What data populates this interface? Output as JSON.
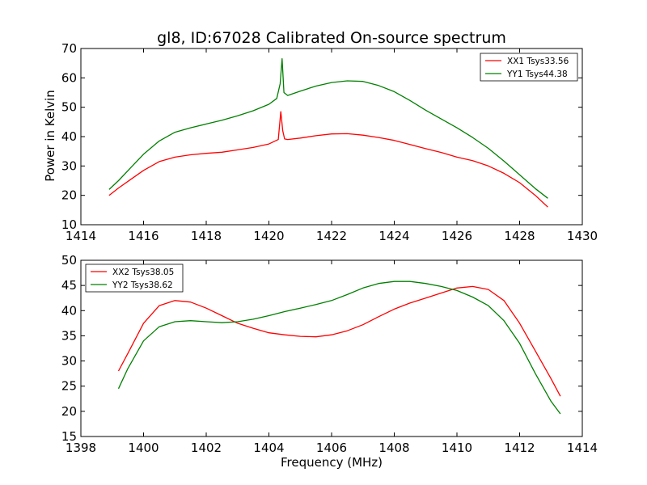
{
  "chart_data": [
    {
      "type": "line",
      "title": "gl8, ID:67028 Calibrated On-source spectrum",
      "xlabel": "",
      "ylabel": "Power in Kelvin",
      "xlim": [
        1414,
        1430
      ],
      "ylim": [
        10,
        70
      ],
      "xticks": [
        "1414",
        "1416",
        "1418",
        "1420",
        "1422",
        "1424",
        "1426",
        "1428",
        "1430"
      ],
      "yticks": [
        "10",
        "20",
        "30",
        "40",
        "50",
        "60",
        "70"
      ],
      "legend_position": "top-right",
      "series": [
        {
          "name": "XX1 Tsys33.56",
          "color": "#ff0000",
          "x": [
            1414.9,
            1415.2,
            1415.6,
            1416.0,
            1416.5,
            1417.0,
            1417.5,
            1418.0,
            1418.5,
            1419.0,
            1419.5,
            1420.0,
            1420.3,
            1420.38,
            1420.44,
            1420.5,
            1420.6,
            1421.0,
            1421.5,
            1422.0,
            1422.5,
            1423.0,
            1423.5,
            1424.0,
            1424.5,
            1425.0,
            1425.5,
            1426.0,
            1426.5,
            1427.0,
            1427.5,
            1428.0,
            1428.5,
            1428.9
          ],
          "values": [
            20.0,
            22.5,
            25.5,
            28.5,
            31.5,
            33.0,
            33.8,
            34.3,
            34.7,
            35.5,
            36.3,
            37.5,
            39.0,
            48.5,
            42.0,
            39.2,
            39.0,
            39.5,
            40.3,
            40.9,
            41.0,
            40.5,
            39.7,
            38.7,
            37.3,
            35.9,
            34.6,
            33.0,
            31.8,
            30.0,
            27.5,
            24.3,
            20.0,
            16.0
          ]
        },
        {
          "name": "YY1 Tsys44.38",
          "color": "#008000",
          "x": [
            1414.9,
            1415.2,
            1415.6,
            1416.0,
            1416.5,
            1417.0,
            1417.5,
            1418.0,
            1418.5,
            1419.0,
            1419.5,
            1420.0,
            1420.25,
            1420.36,
            1420.42,
            1420.48,
            1420.6,
            1421.0,
            1421.5,
            1422.0,
            1422.5,
            1423.0,
            1423.5,
            1424.0,
            1424.5,
            1425.0,
            1425.5,
            1426.0,
            1426.5,
            1427.0,
            1427.5,
            1428.0,
            1428.5,
            1428.9
          ],
          "values": [
            22.0,
            25.0,
            29.5,
            34.0,
            38.5,
            41.5,
            43.0,
            44.3,
            45.6,
            47.1,
            48.8,
            51.0,
            53.0,
            58.0,
            66.5,
            55.0,
            54.0,
            55.5,
            57.2,
            58.4,
            59.0,
            58.8,
            57.4,
            55.3,
            52.3,
            49.0,
            46.0,
            43.0,
            39.7,
            36.0,
            31.7,
            27.0,
            22.3,
            19.0
          ]
        }
      ]
    },
    {
      "type": "line",
      "title": "",
      "xlabel": "Frequency (MHz)",
      "ylabel": "",
      "xlim": [
        1398,
        1414
      ],
      "ylim": [
        15,
        50
      ],
      "xticks": [
        "1398",
        "1400",
        "1402",
        "1404",
        "1406",
        "1408",
        "1410",
        "1412",
        "1414"
      ],
      "yticks": [
        "15",
        "20",
        "25",
        "30",
        "35",
        "40",
        "45",
        "50"
      ],
      "legend_position": "top-left",
      "series": [
        {
          "name": "XX2 Tsys38.05",
          "color": "#ff0000",
          "x": [
            1399.2,
            1399.5,
            1400.0,
            1400.5,
            1401.0,
            1401.5,
            1402.0,
            1402.5,
            1403.0,
            1403.5,
            1404.0,
            1404.5,
            1405.0,
            1405.5,
            1406.0,
            1406.5,
            1407.0,
            1407.5,
            1408.0,
            1408.5,
            1409.0,
            1409.5,
            1410.0,
            1410.5,
            1411.0,
            1411.5,
            1412.0,
            1412.5,
            1413.0,
            1413.3
          ],
          "values": [
            28.0,
            31.5,
            37.5,
            41.0,
            42.0,
            41.7,
            40.5,
            39.0,
            37.5,
            36.5,
            35.6,
            35.2,
            34.9,
            34.8,
            35.2,
            36.0,
            37.2,
            38.8,
            40.3,
            41.5,
            42.5,
            43.5,
            44.5,
            44.8,
            44.2,
            42.0,
            37.5,
            32.0,
            26.5,
            23.0
          ]
        },
        {
          "name": "YY2 Tsys38.62",
          "color": "#008000",
          "x": [
            1399.2,
            1399.5,
            1400.0,
            1400.5,
            1401.0,
            1401.5,
            1402.0,
            1402.5,
            1403.0,
            1403.5,
            1404.0,
            1404.5,
            1405.0,
            1405.5,
            1406.0,
            1406.5,
            1407.0,
            1407.5,
            1408.0,
            1408.5,
            1409.0,
            1409.5,
            1410.0,
            1410.5,
            1411.0,
            1411.5,
            1412.0,
            1412.5,
            1413.0,
            1413.3
          ],
          "values": [
            24.5,
            28.5,
            34.0,
            36.8,
            37.8,
            38.0,
            37.8,
            37.6,
            37.8,
            38.3,
            39.0,
            39.8,
            40.5,
            41.2,
            42.0,
            43.2,
            44.5,
            45.4,
            45.8,
            45.8,
            45.4,
            44.8,
            44.0,
            42.7,
            41.0,
            38.0,
            33.5,
            27.5,
            22.0,
            19.5
          ]
        }
      ]
    }
  ]
}
